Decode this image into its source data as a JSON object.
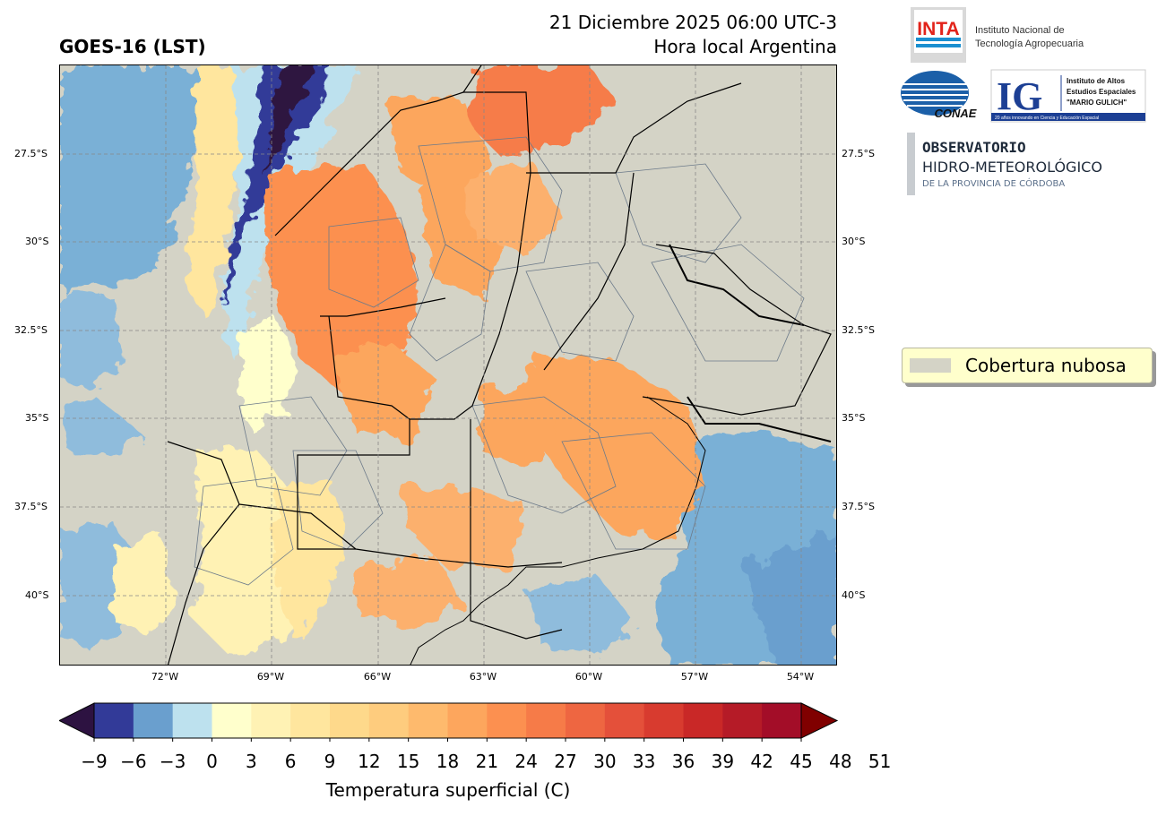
{
  "header": {
    "title": "GOES-16 (LST)",
    "datetime": "21 Diciembre 2025 06:00 UTC-3",
    "subtitle": "Hora local Argentina"
  },
  "map": {
    "lat_ticks": [
      "27.5°S",
      "30°S",
      "32.5°S",
      "35°S",
      "37.5°S",
      "40°S"
    ],
    "lon_ticks": [
      "72°W",
      "69°W",
      "66°W",
      "63°W",
      "60°W",
      "57°W",
      "54°W"
    ],
    "legend_label": "Cobertura nubosa"
  },
  "logos": {
    "inta_mark": "INTA",
    "inta_name_1": "Instituto Nacional de",
    "inta_name_2": "Tecnología Agropecuaria",
    "conae_mark": "CONAE",
    "ig_mark": "IG",
    "ig_name_1": "Instituto de Altos",
    "ig_name_2": "Estudios Espaciales",
    "ig_name_3": "\"MARIO GULICH\"",
    "ig_tagline": "20 años innovando en Ciencia y Educación Espacial",
    "obs_1": "OBSERVATORIO",
    "obs_2": "HIDRO-METEOROLÓGICO",
    "obs_3": "DE LA PROVINCIA DE CÓRDOBA"
  },
  "colorbar": {
    "label": "Temperatura superficial (C)",
    "ticks": [
      "−9",
      "−6",
      "−3",
      "0",
      "3",
      "6",
      "9",
      "12",
      "15",
      "18",
      "21",
      "24",
      "27",
      "30",
      "33",
      "36",
      "39",
      "42",
      "45",
      "48",
      "51"
    ],
    "under_color": "#2d1241",
    "over_color": "#800000",
    "colors": [
      "#323a98",
      "#6a9fce",
      "#bde1ee",
      "#ffffcc",
      "#fff2b4",
      "#ffe69e",
      "#fed98b",
      "#fecc7e",
      "#feba6d",
      "#fda65d",
      "#fc9050",
      "#f67b48",
      "#ee6641",
      "#e4503a",
      "#d83b2f",
      "#c92827",
      "#b51b27",
      "#a30d28"
    ]
  },
  "colors": {
    "cloud": "#d4d3c6",
    "border": "#000000",
    "division": "#6c7a8a"
  }
}
